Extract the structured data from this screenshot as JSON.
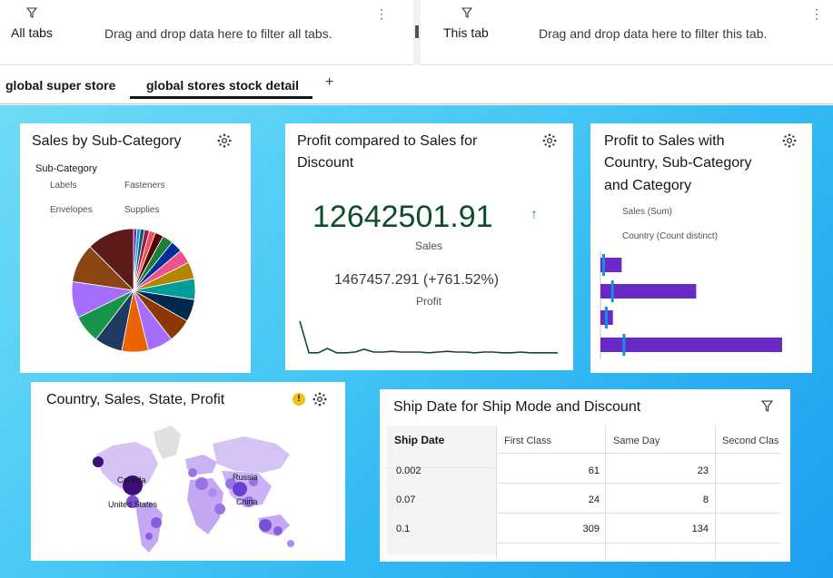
{
  "filter_bar": {
    "all_tabs": {
      "label": "All tabs",
      "hint": "Drag and drop data here to filter all tabs."
    },
    "this_tab": {
      "label": "This tab",
      "hint": "Drag and drop data here to filter this tab."
    }
  },
  "tabs": [
    {
      "label": "global super store",
      "active": false
    },
    {
      "label": "global stores stock detail",
      "active": true
    }
  ],
  "add_tab_label": "+",
  "widgets": {
    "sales_by_subcategory": {
      "title": "Sales by Sub-Category",
      "legend_title": "Sub-Category",
      "legend_items": [
        "Labels",
        "Fasteners",
        "Envelopes",
        "Supplies"
      ]
    },
    "profit_vs_sales": {
      "title_line1": "Profit compared to Sales for",
      "title_line2": "Discount",
      "main_value": "12642501.91",
      "main_arrow": "↑",
      "main_label": "Sales",
      "secondary_value": "1467457.291 (+761.52%)",
      "secondary_label": "Profit"
    },
    "profit_to_sales_country": {
      "title_line1": "Profit to Sales with",
      "title_line2": "Country, Sub-Category",
      "title_line3": "and Category",
      "legend_sales": "Sales (Sum)",
      "legend_country": "Country (Count distinct)"
    },
    "map": {
      "title": "Country, Sales, State, Profit",
      "warning": "!",
      "labels": [
        "Canada",
        "United States",
        "Russia",
        "China"
      ]
    },
    "ship_table": {
      "title": "Ship Date for Ship Mode and Discount",
      "row_header": "Ship Date",
      "columns": [
        "First Class",
        "Same Day",
        "Second Clas"
      ],
      "rows": [
        {
          "date": "0.002",
          "first": "61",
          "same": "23"
        },
        {
          "date": "0.07",
          "first": "24",
          "same": "8"
        },
        {
          "date": "0.1",
          "first": "309",
          "same": "134"
        }
      ]
    }
  },
  "chart_data": [
    {
      "type": "pie",
      "title": "Sales by Sub-Category",
      "legend_title": "Sub-Category",
      "slices": [
        {
          "value": 1.2,
          "color": "#6929c4"
        },
        {
          "value": 1.2,
          "color": "#1192e8"
        },
        {
          "value": 1.5,
          "color": "#005d5d"
        },
        {
          "value": 1.8,
          "color": "#9f1853"
        },
        {
          "value": 2.2,
          "color": "#fa4d56"
        },
        {
          "value": 3.0,
          "color": "#570408"
        },
        {
          "value": 3.8,
          "color": "#198038"
        },
        {
          "value": 4.2,
          "color": "#002d9c"
        },
        {
          "value": 5.0,
          "color": "#ee538b"
        },
        {
          "value": 6.0,
          "color": "#b28600"
        },
        {
          "value": 7.5,
          "color": "#009d9a"
        },
        {
          "value": 8.0,
          "color": "#012749"
        },
        {
          "value": 8.5,
          "color": "#8a3800"
        },
        {
          "value": 9.0,
          "color": "#a56eff"
        },
        {
          "value": 9.5,
          "color": "#eb6200"
        },
        {
          "value": 10.0,
          "color": "#1e3a5f"
        },
        {
          "value": 10.0,
          "color": "#16944a"
        },
        {
          "value": 13.0,
          "color": "#a56eff"
        },
        {
          "value": 14.0,
          "color": "#8b4513"
        },
        {
          "value": 17.0,
          "color": "#5c1a1a"
        }
      ]
    },
    {
      "type": "line",
      "series": [
        {
          "values": [
            95,
            8,
            8,
            20,
            8,
            8,
            10,
            18,
            10,
            10,
            12,
            10,
            10,
            10,
            8,
            10,
            12,
            10,
            10,
            8,
            10,
            10,
            8,
            8,
            10,
            8,
            8,
            8,
            8
          ]
        }
      ]
    },
    {
      "type": "bar",
      "orientation": "horizontal",
      "series": [
        {
          "name": "Sales (Sum)",
          "values": [
            24,
            108,
            14,
            205
          ]
        },
        {
          "name": "Country (Count distinct)",
          "values": [
            2,
            12,
            5,
            25
          ]
        }
      ]
    }
  ]
}
